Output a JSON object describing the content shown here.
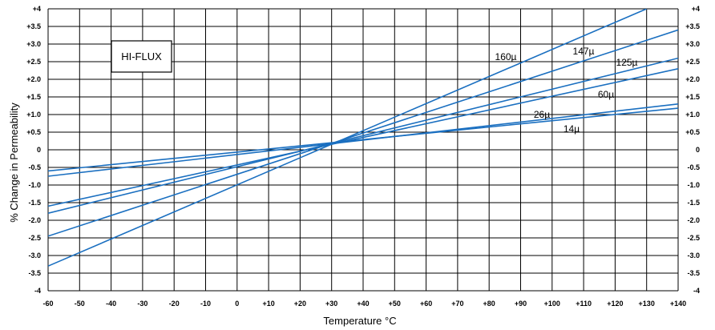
{
  "chart_data": {
    "type": "line",
    "note": "HI-FLUX",
    "xlabel": "Temperature °C",
    "ylabel": "% Change in Permeability",
    "xlim": [
      -60,
      140
    ],
    "ylim": [
      -4,
      4
    ],
    "x_ticks": [
      -60,
      -50,
      -40,
      -30,
      -20,
      -10,
      0,
      10,
      20,
      30,
      40,
      50,
      60,
      70,
      80,
      90,
      100,
      110,
      120,
      130,
      140
    ],
    "x_tick_labels": [
      "-60",
      "-50",
      "-40",
      "-30",
      "-20",
      "-10",
      "0",
      "+10",
      "+20",
      "+30",
      "+40",
      "+50",
      "+60",
      "+70",
      "+80",
      "+90",
      "+100",
      "+110",
      "+120",
      "+130",
      "+140"
    ],
    "y_ticks": [
      4,
      3.5,
      3,
      2.5,
      2,
      1.5,
      1,
      0.5,
      0,
      -0.5,
      -1,
      -1.5,
      -2,
      -2.5,
      -3,
      -3.5,
      -4
    ],
    "y_tick_labels": [
      "+4",
      "+3.5",
      "+3.0",
      "+2.5",
      "+2.0",
      "+1.5",
      "+1.0",
      "+0.5",
      "0",
      "-0.5",
      "-1.0",
      "-1.5",
      "-2.0",
      "-2.5",
      "-3.0",
      "-3.5",
      "-4"
    ],
    "grid": true,
    "line_color": "#1a6fc0",
    "series": [
      {
        "name": "160µ",
        "x": [
          -60,
          130
        ],
        "y": [
          -3.3,
          4.0
        ]
      },
      {
        "name": "147µ",
        "x": [
          -60,
          140
        ],
        "y": [
          -2.45,
          3.4
        ]
      },
      {
        "name": "125µ",
        "x": [
          -60,
          140
        ],
        "y": [
          -1.8,
          2.6
        ]
      },
      {
        "name": "60µ",
        "x": [
          -60,
          140
        ],
        "y": [
          -1.6,
          2.3
        ]
      },
      {
        "name": "26µ",
        "x": [
          -60,
          140
        ],
        "y": [
          -0.75,
          1.3
        ]
      },
      {
        "name": "14µ",
        "x": [
          -60,
          140
        ],
        "y": [
          -0.6,
          1.18
        ]
      }
    ]
  }
}
